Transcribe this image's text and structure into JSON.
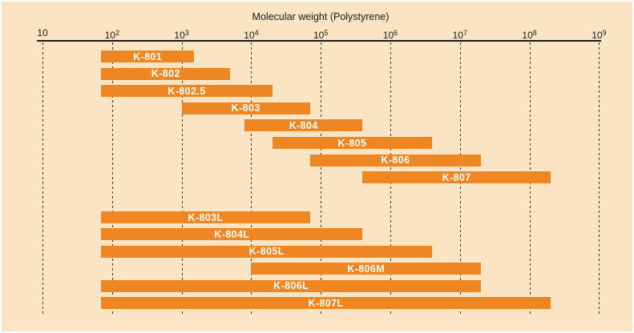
{
  "title": "Molecular weight (Polystyrene)",
  "colors": {
    "background": "#FAE4C3",
    "bar": "#EE8722",
    "bar_label": "#FFFFFF",
    "axis": "#1A1A1A",
    "gridline": "#3A3A3A",
    "frame": "#FFFFFF"
  },
  "chart_data": {
    "type": "bar",
    "subtype": "horizontal-range-bars",
    "title": "Molecular weight (Polystyrene)",
    "xlabel": "Molecular weight (Polystyrene)",
    "ylabel": "",
    "xscale": "log",
    "xlim": [
      10,
      1000000000
    ],
    "grid": "vertical-dashed",
    "legend": "none",
    "x_ticks": [
      {
        "base": "10",
        "exp": ""
      },
      {
        "base": "10",
        "exp": "2"
      },
      {
        "base": "10",
        "exp": "3"
      },
      {
        "base": "10",
        "exp": "4"
      },
      {
        "base": "10",
        "exp": "5"
      },
      {
        "base": "10",
        "exp": "6"
      },
      {
        "base": "10",
        "exp": "7"
      },
      {
        "base": "10",
        "exp": "8"
      },
      {
        "base": "10",
        "exp": "9"
      }
    ],
    "upper_group": [
      {
        "label": "K-801",
        "min": 70,
        "max": 1500
      },
      {
        "label": "K-802",
        "min": 70,
        "max": 5000
      },
      {
        "label": "K-802.5",
        "min": 70,
        "max": 20000
      },
      {
        "label": "K-803",
        "min": 1000,
        "max": 70000
      },
      {
        "label": "K-804",
        "min": 8000,
        "max": 400000
      },
      {
        "label": "K-805",
        "min": 20000,
        "max": 4000000
      },
      {
        "label": "K-806",
        "min": 70000,
        "max": 20000000
      },
      {
        "label": "K-807",
        "min": 400000,
        "max": 200000000
      }
    ],
    "lower_group": [
      {
        "label": "K-803L",
        "min": 70,
        "max": 70000
      },
      {
        "label": "K-804L",
        "min": 70,
        "max": 400000
      },
      {
        "label": "K-805L",
        "min": 70,
        "max": 4000000
      },
      {
        "label": "K-806M",
        "min": 10000,
        "max": 20000000
      },
      {
        "label": "K-806L",
        "min": 70,
        "max": 20000000
      },
      {
        "label": "K-807L",
        "min": 70,
        "max": 200000000
      }
    ]
  }
}
